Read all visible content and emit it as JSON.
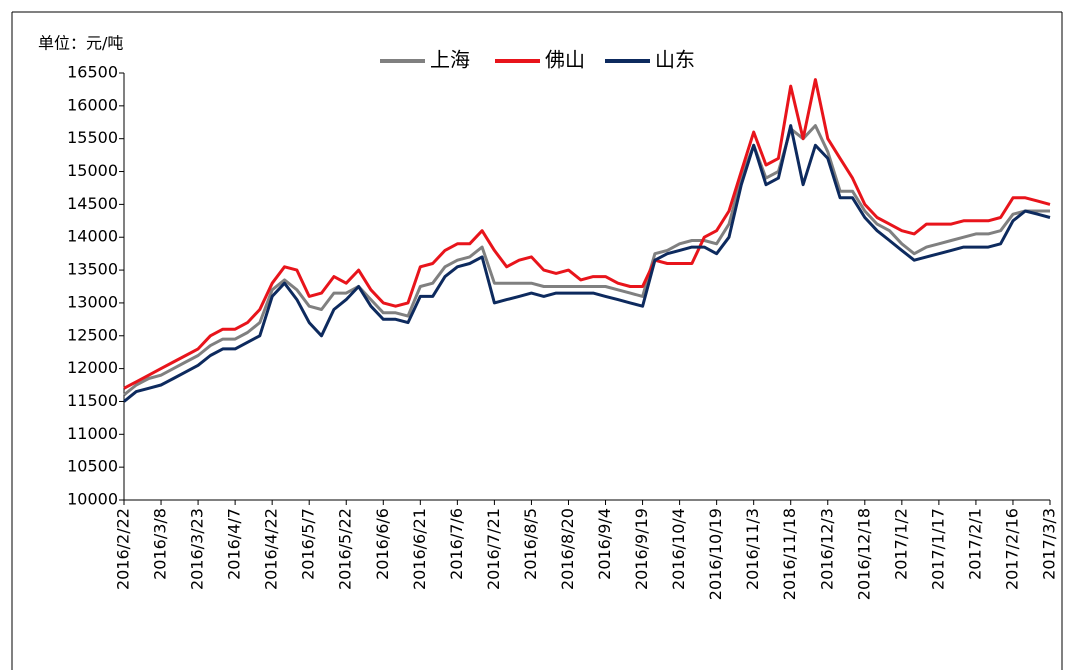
{
  "chart_data": {
    "type": "line",
    "unit_label": "单位：元/吨",
    "categories": [
      "2016/2/22",
      null,
      null,
      "2016/3/8",
      null,
      null,
      "2016/3/23",
      null,
      null,
      "2016/4/7",
      null,
      null,
      "2016/4/22",
      null,
      null,
      "2016/5/7",
      null,
      null,
      "2016/5/22",
      null,
      null,
      "2016/6/6",
      null,
      null,
      "2016/6/21",
      null,
      null,
      "2016/7/6",
      null,
      null,
      "2016/7/21",
      null,
      null,
      "2016/8/5",
      null,
      null,
      "2016/8/20",
      null,
      null,
      "2016/9/4",
      null,
      null,
      "2016/9/19",
      null,
      null,
      "2016/10/4",
      null,
      null,
      "2016/10/19",
      null,
      null,
      "2016/11/3",
      null,
      null,
      "2016/11/18",
      null,
      null,
      "2016/12/3",
      null,
      null,
      "2016/12/18",
      null,
      null,
      "2017/1/2",
      null,
      null,
      "2017/1/17",
      null,
      null,
      "2017/2/1",
      null,
      null,
      "2017/2/16",
      null,
      null,
      "2017/3/3"
    ],
    "series": [
      {
        "name": "上海",
        "color": "#808080",
        "values": [
          11600,
          11750,
          11850,
          11900,
          12000,
          12100,
          12200,
          12350,
          12450,
          12450,
          12550,
          12700,
          13200,
          13350,
          13200,
          12950,
          12900,
          13150,
          13150,
          13250,
          13050,
          12850,
          12850,
          12800,
          13250,
          13300,
          13550,
          13650,
          13700,
          13850,
          13300,
          13300,
          13300,
          13300,
          13250,
          13250,
          13250,
          13250,
          13250,
          13250,
          13200,
          13150,
          13100,
          13750,
          13800,
          13900,
          13950,
          13950,
          13900,
          14200,
          14900,
          15400,
          14900,
          15000,
          15650,
          15500,
          15700,
          15300,
          14700,
          14700,
          14400,
          14200,
          14100,
          13900,
          13750,
          13850,
          13900,
          13950,
          14000,
          14050,
          14050,
          14100,
          14350,
          14400,
          14400,
          14400
        ]
      },
      {
        "name": "佛山",
        "color": "#e8141b",
        "values": [
          11700,
          11800,
          11900,
          12000,
          12100,
          12200,
          12300,
          12500,
          12600,
          12600,
          12700,
          12900,
          13300,
          13550,
          13500,
          13100,
          13150,
          13400,
          13300,
          13500,
          13200,
          13000,
          12950,
          13000,
          13550,
          13600,
          13800,
          13900,
          13900,
          14100,
          13800,
          13550,
          13650,
          13700,
          13500,
          13450,
          13500,
          13350,
          13400,
          13400,
          13300,
          13250,
          13250,
          13650,
          13600,
          13600,
          13600,
          14000,
          14100,
          14400,
          15000,
          15600,
          15100,
          15200,
          16300,
          15500,
          16400,
          15500,
          15200,
          14900,
          14500,
          14300,
          14200,
          14100,
          14050,
          14200,
          14200,
          14200,
          14250,
          14250,
          14250,
          14300,
          14600,
          14600,
          14550,
          14500
        ]
      },
      {
        "name": "山东",
        "color": "#0d2a5e",
        "values": [
          11500,
          11650,
          11700,
          11750,
          11850,
          11950,
          12050,
          12200,
          12300,
          12300,
          12400,
          12500,
          13100,
          13300,
          13050,
          12700,
          12500,
          12900,
          13050,
          13250,
          12950,
          12750,
          12750,
          12700,
          13100,
          13100,
          13400,
          13550,
          13600,
          13700,
          13000,
          13050,
          13100,
          13150,
          13100,
          13150,
          13150,
          13150,
          13150,
          13100,
          13050,
          13000,
          12950,
          13650,
          13750,
          13800,
          13850,
          13850,
          13750,
          14000,
          14800,
          15400,
          14800,
          14900,
          15700,
          14800,
          15400,
          15200,
          14600,
          14600,
          14300,
          14100,
          13950,
          13800,
          13650,
          13700,
          13750,
          13800,
          13850,
          13850,
          13850,
          13900,
          14250,
          14400,
          14350,
          14300
        ]
      }
    ],
    "ylim": [
      10000,
      16500
    ],
    "yticks": [
      10000,
      10500,
      11000,
      11500,
      12000,
      12500,
      13000,
      13500,
      14000,
      14500,
      15000,
      15500,
      16000,
      16500
    ],
    "legend": "top"
  }
}
